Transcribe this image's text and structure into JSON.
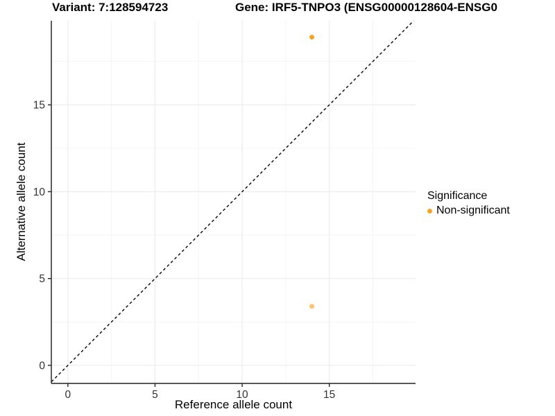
{
  "chart_data": {
    "type": "scatter",
    "title_left": "Variant: 7:128594723",
    "title_right": "Gene: IRF5-TNPO3 (ENSG00000128604-ENSG0",
    "xlabel": "Reference allele count",
    "ylabel": "Alternative allele count",
    "xticks": [
      0,
      5,
      10,
      15
    ],
    "yticks": [
      0,
      5,
      10,
      15
    ],
    "xtick_labels": [
      "0",
      "5",
      "10",
      "15"
    ],
    "ytick_labels": [
      "0",
      "5",
      "10",
      "15"
    ],
    "xlim": [
      -0.95,
      19.95
    ],
    "ylim": [
      -1.04,
      19.84
    ],
    "minor_grid_offset": 2.5,
    "grid": true,
    "identity_line": {
      "type": "dashed",
      "slope": 1,
      "intercept": 0,
      "color": "#000000"
    },
    "points": [
      {
        "x": 14,
        "y": 18.9,
        "series": "Non-significant",
        "alpha": 1.0
      },
      {
        "x": 14,
        "y": 3.4,
        "series": "Non-significant",
        "alpha": 0.65
      }
    ],
    "legend": {
      "title": "Significance",
      "position": "right",
      "entries": [
        {
          "label": "Non-significant",
          "color": "#F9A326"
        }
      ]
    }
  },
  "colors": {
    "accent_orange": "#F9A326",
    "grid_major": "#EBEBEB",
    "grid_minor": "#F5F5F5",
    "axis_line": "#404040",
    "tick_label": "#333333",
    "diagonal": "#000000"
  }
}
